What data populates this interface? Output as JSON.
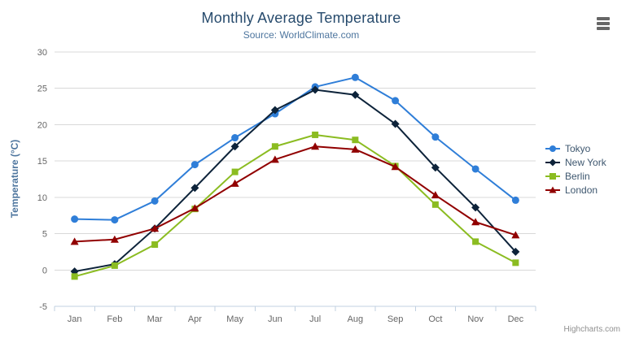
{
  "header": {
    "title": "Monthly Average Temperature",
    "subtitle": "Source: WorldClimate.com"
  },
  "toolbar": {
    "export_menu_icon": "hamburger-icon"
  },
  "credits": {
    "label": "Highcharts.com"
  },
  "theme": {
    "title_color": "#274b6d",
    "subtitle_color": "#4d759e",
    "axis_title_color": "#4d759e",
    "axis_label_color": "#666666",
    "grid_color": "#d8d8d8",
    "axis_line_color": "#c0d0e0",
    "legend_text_color": "#3e576f",
    "credits_color": "#909090",
    "menu_icon_color": "#666666"
  },
  "chart_data": {
    "type": "line",
    "title": "Monthly Average Temperature",
    "subtitle": "Source: WorldClimate.com",
    "xlabel": "",
    "ylabel": "Temperature (°C)",
    "categories": [
      "Jan",
      "Feb",
      "Mar",
      "Apr",
      "May",
      "Jun",
      "Jul",
      "Aug",
      "Sep",
      "Oct",
      "Nov",
      "Dec"
    ],
    "series": [
      {
        "name": "Tokyo",
        "color": "#2f7ed8",
        "marker": "circle",
        "values": [
          7.0,
          6.9,
          9.5,
          14.5,
          18.2,
          21.5,
          25.2,
          26.5,
          23.3,
          18.3,
          13.9,
          9.6
        ]
      },
      {
        "name": "New York",
        "color": "#0d233a",
        "marker": "diamond",
        "values": [
          -0.2,
          0.8,
          5.7,
          11.3,
          17.0,
          22.0,
          24.8,
          24.1,
          20.1,
          14.1,
          8.6,
          2.5
        ]
      },
      {
        "name": "Berlin",
        "color": "#8bbc21",
        "marker": "square",
        "values": [
          -0.9,
          0.6,
          3.5,
          8.4,
          13.5,
          17.0,
          18.6,
          17.9,
          14.3,
          9.0,
          3.9,
          1.0
        ]
      },
      {
        "name": "London",
        "color": "#910000",
        "marker": "triangle",
        "values": [
          3.9,
          4.2,
          5.7,
          8.5,
          11.9,
          15.2,
          17.0,
          16.6,
          14.2,
          10.3,
          6.6,
          4.8
        ]
      }
    ],
    "ylim": [
      -5,
      30
    ],
    "yticks": [
      -5,
      0,
      5,
      10,
      15,
      20,
      25,
      30
    ],
    "grid": true,
    "legend_position": "right"
  }
}
